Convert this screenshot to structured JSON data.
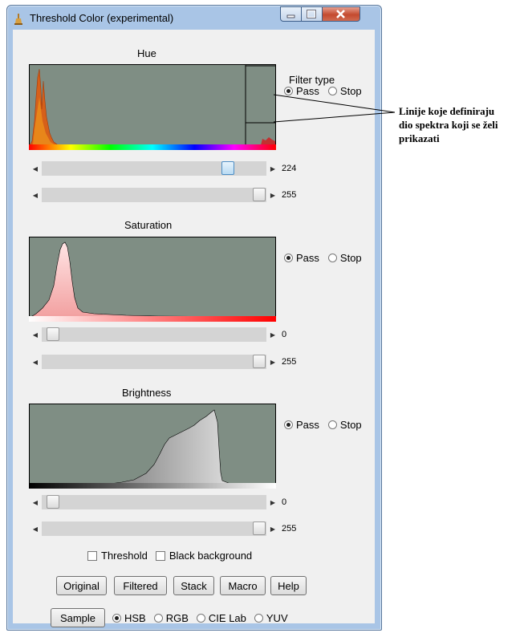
{
  "window": {
    "title": "Threshold Color (experimental)"
  },
  "filter_type_label": "Filter type",
  "radio_labels": {
    "pass": "Pass",
    "stop": "Stop"
  },
  "hue": {
    "title": "Hue",
    "filter": "Pass",
    "slider_min": {
      "value": "224",
      "level": 0.88
    },
    "slider_max": {
      "value": "255",
      "level": 1.0
    }
  },
  "saturation": {
    "title": "Saturation",
    "filter": "Pass",
    "slider_min": {
      "value": "0",
      "level": 0.0
    },
    "slider_max": {
      "value": "255",
      "level": 1.0
    }
  },
  "brightness": {
    "title": "Brightness",
    "filter": "Pass",
    "slider_min": {
      "value": "0",
      "level": 0.0
    },
    "slider_max": {
      "value": "255",
      "level": 1.0
    }
  },
  "checkboxes": {
    "threshold": "Threshold",
    "black_background": "Black background"
  },
  "buttons": {
    "original": "Original",
    "filtered": "Filtered",
    "stack": "Stack",
    "macro": "Macro",
    "help": "Help",
    "sample": "Sample"
  },
  "color_space": {
    "options": [
      "HSB",
      "RGB",
      "CIE Lab",
      "YUV"
    ],
    "selected": "HSB"
  },
  "annotation": [
    "Linije koje definiraju",
    "dio spektra koji se želi",
    "prikazati"
  ]
}
